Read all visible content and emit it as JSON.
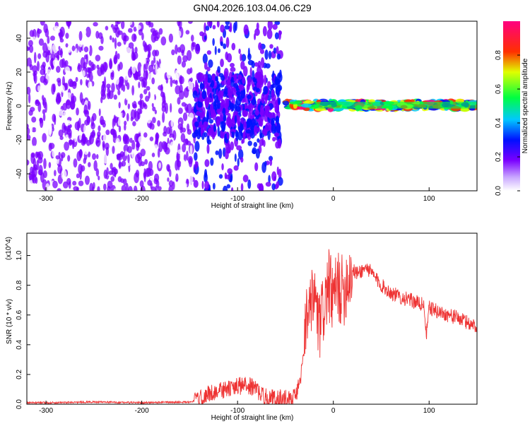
{
  "figure_title": "GN04.2026.103.04.06.C29",
  "chart_data": [
    {
      "type": "heatmap",
      "title": "GN04.2026.103.04.06.C29",
      "xlabel": "Height of straight line (km)",
      "ylabel": "Frequency (Hz)",
      "xlim": [
        -320,
        150
      ],
      "ylim": [
        -50,
        50
      ],
      "x_ticks": [
        -300,
        -200,
        -100,
        0,
        100
      ],
      "y_ticks": [
        -40,
        -20,
        0,
        20,
        40
      ],
      "colorbar": {
        "label": "Normalized spectral amplitude",
        "range": [
          0,
          1
        ],
        "ticks": [
          0.0,
          0.2,
          0.4,
          0.6,
          0.8
        ],
        "colormap": [
          "#ffffff",
          "#7a00ff",
          "#0010ff",
          "#00c8ff",
          "#00ff40",
          "#e0ff00",
          "#ff3000",
          "#ff0080"
        ]
      },
      "regions": [
        {
          "desc": "scattered noise",
          "x": [
            -320,
            -145
          ],
          "freq": [
            -50,
            50
          ],
          "amplitude": 0.1
        },
        {
          "desc": "dense noise",
          "x": [
            -145,
            -55
          ],
          "freq": [
            -20,
            20
          ],
          "amplitude": 0.2
        },
        {
          "desc": "signal band",
          "x": [
            -50,
            150
          ],
          "freq": [
            -2,
            3
          ],
          "amplitude": 0.7
        }
      ]
    },
    {
      "type": "line",
      "xlabel": "Height of straight line (km)",
      "ylabel": "SNR (10 * v/v)",
      "y_multiplier": "(x10^4)",
      "xlim": [
        -320,
        150
      ],
      "ylim": [
        0,
        1.15
      ],
      "x_ticks": [
        -300,
        -200,
        -100,
        0,
        100
      ],
      "y_ticks": [
        0.0,
        0.2,
        0.4,
        0.6,
        0.8,
        1.0
      ],
      "color": "#ee3333",
      "series": [
        {
          "x": [
            -320,
            -300,
            -250,
            -200,
            -150,
            -140,
            -130,
            -120,
            -110,
            -100,
            -90,
            -80,
            -75,
            -70,
            -60,
            -50,
            -40,
            -35,
            -30,
            -28,
            -25,
            -20,
            -15,
            -10,
            -5,
            0,
            5,
            10,
            15,
            20,
            25,
            30,
            35,
            40,
            50,
            60,
            70,
            80,
            90,
            95,
            97,
            100,
            110,
            120,
            130,
            140,
            150
          ],
          "y": [
            0.01,
            0.01,
            0.015,
            0.01,
            0.015,
            0.03,
            0.07,
            0.09,
            0.1,
            0.12,
            0.13,
            0.1,
            0.06,
            0.05,
            0.04,
            0.04,
            0.05,
            0.15,
            0.35,
            0.7,
            0.55,
            0.75,
            0.5,
            0.65,
            0.8,
            0.7,
            0.8,
            0.75,
            0.85,
            0.9,
            0.88,
            0.9,
            0.92,
            0.88,
            0.8,
            0.75,
            0.72,
            0.7,
            0.68,
            0.66,
            0.45,
            0.65,
            0.62,
            0.6,
            0.58,
            0.55,
            0.52
          ]
        }
      ]
    }
  ]
}
